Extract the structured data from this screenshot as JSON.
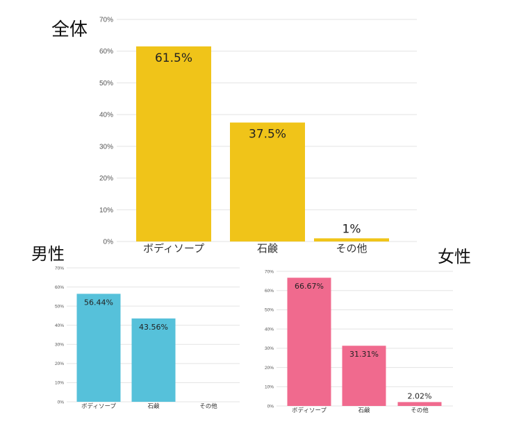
{
  "chart_data": [
    {
      "type": "bar",
      "title": "全体",
      "categories": [
        "ボディソープ",
        "石鹸",
        "その他"
      ],
      "values": [
        61.5,
        37.5,
        1
      ],
      "value_labels": [
        "61.5%",
        "37.5%",
        "1%"
      ],
      "yticks": [
        "0%",
        "10%",
        "20%",
        "30%",
        "40%",
        "50%",
        "60%",
        "70%"
      ],
      "ylim": [
        0,
        70
      ],
      "grid": true,
      "color": "#F0C419"
    },
    {
      "type": "bar",
      "title": "男性",
      "categories": [
        "ボディソープ",
        "石鹸",
        "その他"
      ],
      "values": [
        56.44,
        43.56,
        0
      ],
      "value_labels": [
        "56.44%",
        "43.56%",
        ""
      ],
      "yticks": [
        "0%",
        "10%",
        "20%",
        "30%",
        "40%",
        "50%",
        "60%",
        "70%"
      ],
      "ylim": [
        0,
        70
      ],
      "grid": true,
      "color": "#56C1DA"
    },
    {
      "type": "bar",
      "title": "女性",
      "categories": [
        "ボディソープ",
        "石鹸",
        "その他"
      ],
      "values": [
        66.67,
        31.31,
        2.02
      ],
      "value_labels": [
        "66.67%",
        "31.31%",
        "2.02%"
      ],
      "yticks": [
        "0%",
        "10%",
        "20%",
        "30%",
        "40%",
        "50%",
        "60%",
        "70%"
      ],
      "ylim": [
        0,
        70
      ],
      "grid": true,
      "color": "#F06A8E"
    }
  ]
}
